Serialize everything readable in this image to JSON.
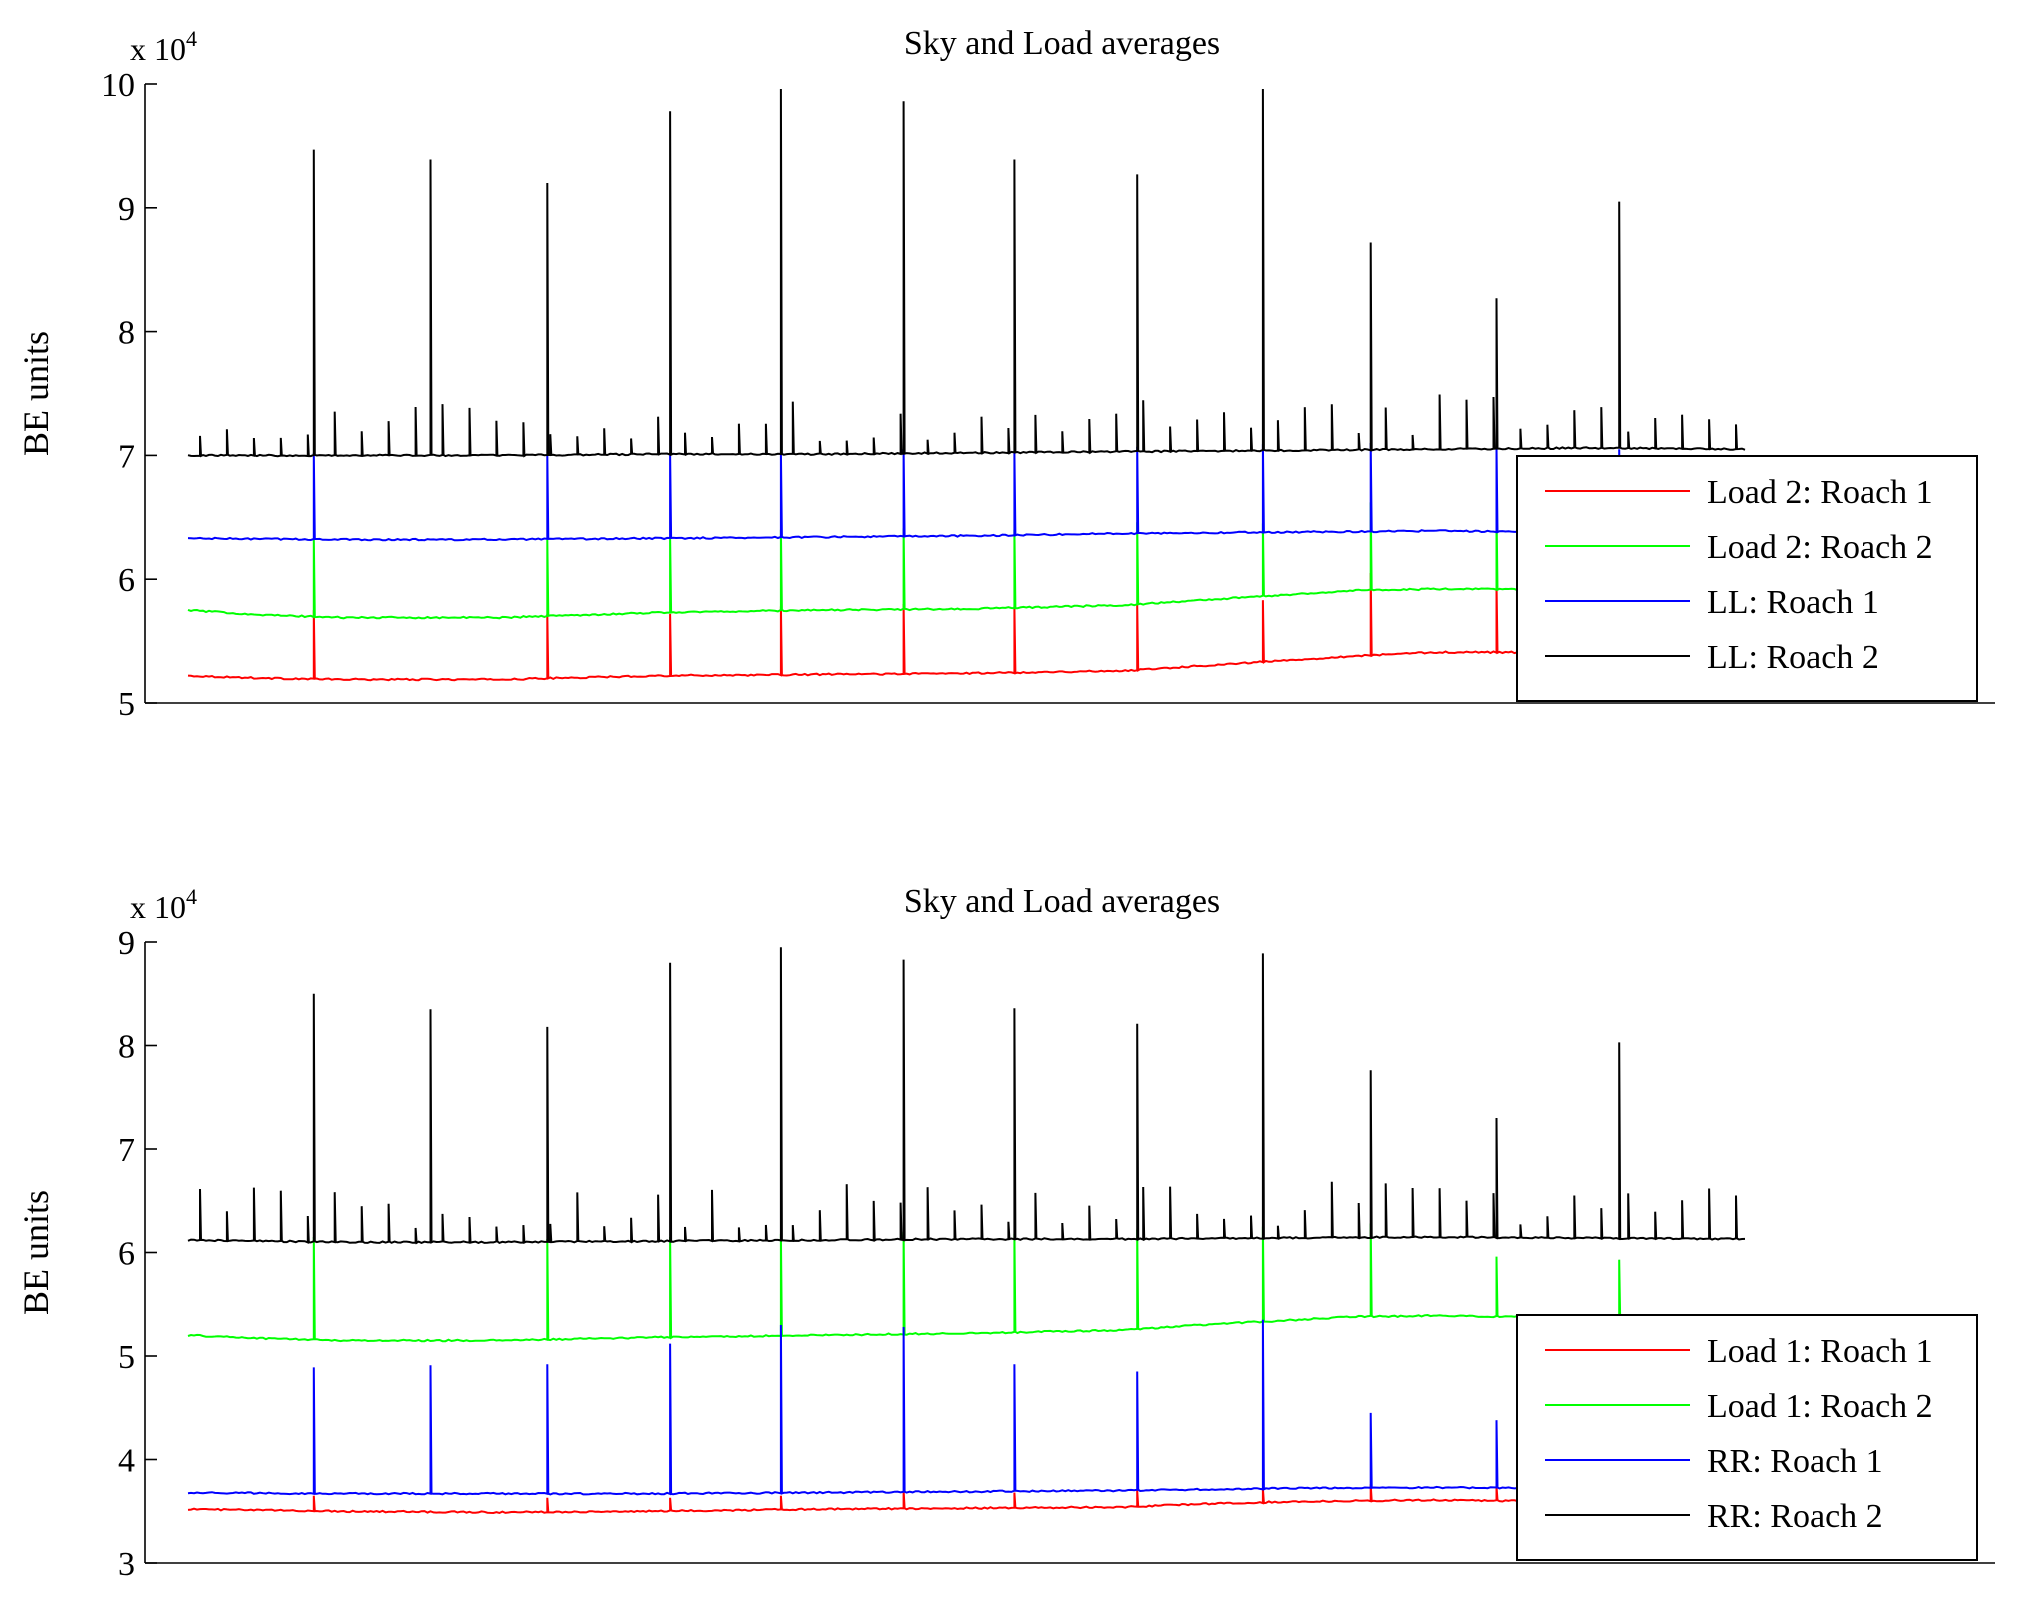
{
  "chart_data": [
    {
      "type": "line",
      "title": "Sky and Load averages",
      "ylabel": "BE units",
      "xlabel": "",
      "y_exponent_label": "x 10",
      "y_exponent_power": "4",
      "ylim": [
        50000,
        100000
      ],
      "yticks": [
        5,
        6,
        7,
        8,
        9,
        10
      ],
      "xlim": [
        0,
        100
      ],
      "grid": false,
      "legend_position": "right",
      "series": [
        {
          "name": "Load 2: Roach 1",
          "color": "#ff0000",
          "x": [
            0,
            5,
            10,
            20,
            30,
            40,
            50,
            60,
            65,
            70,
            75,
            80,
            85,
            90,
            95,
            100
          ],
          "values": [
            52200,
            52000,
            51900,
            51900,
            52200,
            52300,
            52400,
            52600,
            53000,
            53400,
            53800,
            54100,
            54100,
            53800,
            53500,
            53400
          ],
          "spike_x": [
            8,
            23,
            31,
            38,
            46,
            53,
            61,
            69,
            76,
            84,
            92
          ],
          "spike_y": [
            57500,
            57200,
            57200,
            57800,
            58000,
            57800,
            58000,
            58300,
            60500,
            59800,
            58500
          ]
        },
        {
          "name": "Load 2: Roach 2",
          "color": "#00ff00",
          "x": [
            0,
            5,
            10,
            20,
            30,
            40,
            50,
            60,
            65,
            70,
            75,
            80,
            85,
            90,
            95,
            100
          ],
          "values": [
            57500,
            57100,
            56900,
            56900,
            57300,
            57500,
            57600,
            57900,
            58300,
            58700,
            59100,
            59200,
            59200,
            58900,
            58700,
            58700
          ],
          "spike_x": [
            8,
            23,
            31,
            38,
            46,
            53,
            61,
            69,
            76,
            84,
            92
          ],
          "spike_y": [
            63300,
            63200,
            63400,
            64000,
            64100,
            64000,
            64600,
            64500,
            66200,
            65600,
            64800
          ]
        },
        {
          "name": "LL: Roach 1",
          "color": "#0000ff",
          "x": [
            0,
            10,
            20,
            30,
            40,
            50,
            60,
            70,
            80,
            90,
            100
          ],
          "values": [
            63300,
            63200,
            63200,
            63300,
            63400,
            63500,
            63700,
            63800,
            63900,
            63800,
            63800
          ],
          "spike_x": [
            8,
            23,
            31,
            38,
            46,
            53,
            61,
            69,
            76,
            84,
            92
          ],
          "spike_y": [
            70200,
            70100,
            70200,
            70300,
            70500,
            70300,
            70700,
            70900,
            71000,
            70800,
            70500
          ]
        },
        {
          "name": "LL: Roach 2",
          "color": "#000000",
          "x": [
            0,
            10,
            20,
            30,
            40,
            50,
            60,
            70,
            80,
            90,
            100
          ],
          "values": [
            70000,
            70000,
            70000,
            70100,
            70100,
            70200,
            70300,
            70400,
            70500,
            70600,
            70500
          ],
          "spike_x": [
            8,
            15.5,
            23,
            31,
            38,
            46,
            53,
            61,
            69,
            76,
            84,
            92
          ],
          "spike_y": [
            94700,
            93900,
            92000,
            97800,
            99600,
            98600,
            93900,
            92700,
            99600,
            87200,
            82700,
            90500
          ]
        }
      ]
    },
    {
      "type": "line",
      "title": "Sky and Load averages",
      "ylabel": "BE units",
      "xlabel": "",
      "y_exponent_label": "x 10",
      "y_exponent_power": "4",
      "ylim": [
        30000,
        90000
      ],
      "yticks": [
        3,
        4,
        5,
        6,
        7,
        8,
        9
      ],
      "xlim": [
        0,
        100
      ],
      "grid": false,
      "legend_position": "right",
      "series": [
        {
          "name": "Load 1: Roach 1",
          "color": "#ff0000",
          "x": [
            0,
            10,
            20,
            30,
            40,
            50,
            60,
            65,
            70,
            75,
            80,
            85,
            90,
            95,
            100
          ],
          "values": [
            35200,
            35000,
            34900,
            35000,
            35200,
            35300,
            35400,
            35700,
            35900,
            36000,
            36100,
            36000,
            35800,
            35700,
            35700
          ],
          "spike_x": [
            8,
            23,
            31,
            38,
            46,
            53,
            61,
            69,
            76,
            84,
            92
          ],
          "spike_y": [
            36500,
            36300,
            36300,
            36500,
            37000,
            36800,
            37000,
            37200,
            37600,
            37400,
            37200
          ]
        },
        {
          "name": "Load 1: Roach 2",
          "color": "#00ff00",
          "x": [
            0,
            5,
            10,
            20,
            30,
            40,
            50,
            60,
            65,
            70,
            75,
            80,
            85,
            90,
            95,
            100
          ],
          "values": [
            52000,
            51700,
            51500,
            51500,
            51800,
            52000,
            52200,
            52500,
            53000,
            53400,
            53800,
            53900,
            53800,
            53500,
            53300,
            53300
          ],
          "spike_x": [
            8,
            23,
            31,
            38,
            46,
            53,
            61,
            69,
            76,
            84,
            92
          ],
          "spike_y": [
            61500,
            61300,
            61500,
            61800,
            62000,
            61800,
            62200,
            62500,
            62800,
            59600,
            59300
          ]
        },
        {
          "name": "RR: Roach 1",
          "color": "#0000ff",
          "x": [
            0,
            10,
            20,
            30,
            40,
            50,
            60,
            70,
            80,
            90,
            100
          ],
          "values": [
            36800,
            36700,
            36700,
            36700,
            36800,
            36900,
            37000,
            37200,
            37300,
            37200,
            37100
          ],
          "spike_x": [
            8,
            15.5,
            23,
            31,
            38,
            46,
            53,
            61,
            69,
            76,
            84,
            92
          ],
          "spike_y": [
            48900,
            49100,
            49200,
            51200,
            53000,
            52800,
            49200,
            48500,
            53500,
            44500,
            43800,
            38000
          ]
        },
        {
          "name": "RR: Roach 2",
          "color": "#000000",
          "x": [
            0,
            10,
            20,
            30,
            40,
            50,
            60,
            70,
            80,
            90,
            100
          ],
          "values": [
            61200,
            61000,
            61000,
            61100,
            61200,
            61300,
            61300,
            61400,
            61500,
            61400,
            61300
          ],
          "spike_x": [
            8,
            15.5,
            23,
            31,
            38,
            46,
            53,
            61,
            69,
            76,
            84,
            92
          ],
          "spike_y": [
            85000,
            83500,
            81800,
            88000,
            89500,
            88300,
            83600,
            82100,
            88900,
            77600,
            73000,
            80300
          ]
        }
      ]
    }
  ]
}
